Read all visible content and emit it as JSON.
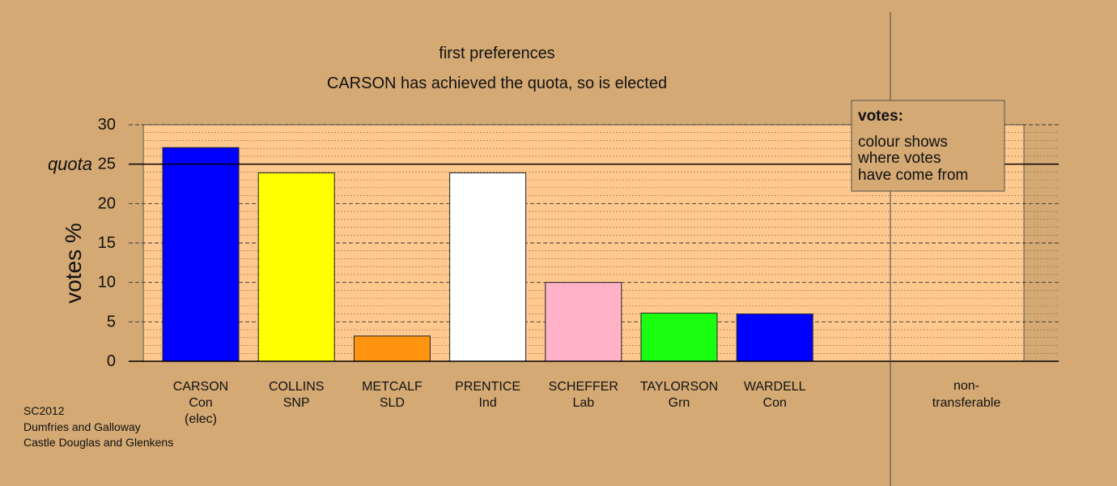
{
  "chart_data": {
    "type": "bar",
    "title": "first preferences",
    "subtitle": "CARSON has achieved the quota, so is elected",
    "ylabel": "votes %",
    "ylim": [
      0,
      30
    ],
    "yticks": [
      "0",
      "5",
      "10",
      "15",
      "20",
      "25",
      "30"
    ],
    "quota": {
      "label": "quota",
      "value": 25
    },
    "grid": true,
    "categories": [
      {
        "name": "CARSON",
        "party": "Con",
        "note": "(elec)",
        "value": 27.1,
        "color": "#0000ff"
      },
      {
        "name": "COLLINS",
        "party": "SNP",
        "note": "",
        "value": 23.9,
        "color": "#ffff00"
      },
      {
        "name": "METCALF",
        "party": "SLD",
        "note": "",
        "value": 3.2,
        "color": "#ff9410"
      },
      {
        "name": "PRENTICE",
        "party": "Ind",
        "note": "",
        "value": 23.9,
        "color": "#ffffff"
      },
      {
        "name": "SCHEFFER",
        "party": "Lab",
        "note": "",
        "value": 10.0,
        "color": "#ffb2c8"
      },
      {
        "name": "TAYLORSON",
        "party": "Grn",
        "note": "",
        "value": 6.1,
        "color": "#1aff10"
      },
      {
        "name": "WARDELL",
        "party": "Con",
        "note": "",
        "value": 6.0,
        "color": "#0000ff"
      }
    ],
    "nontransferable": {
      "label_line1": "non-",
      "label_line2": "transferable",
      "value": 0
    },
    "legend": {
      "placement": "top-right",
      "title": "votes:",
      "lines": [
        "colour shows",
        "where votes",
        "have come from"
      ]
    }
  },
  "footer": {
    "lines": [
      "SC2012",
      "Dumfries and Galloway",
      "Castle Douglas and Glenkens"
    ]
  },
  "colors": {
    "background": "#d4a974",
    "plot_area": "#fec98e"
  }
}
